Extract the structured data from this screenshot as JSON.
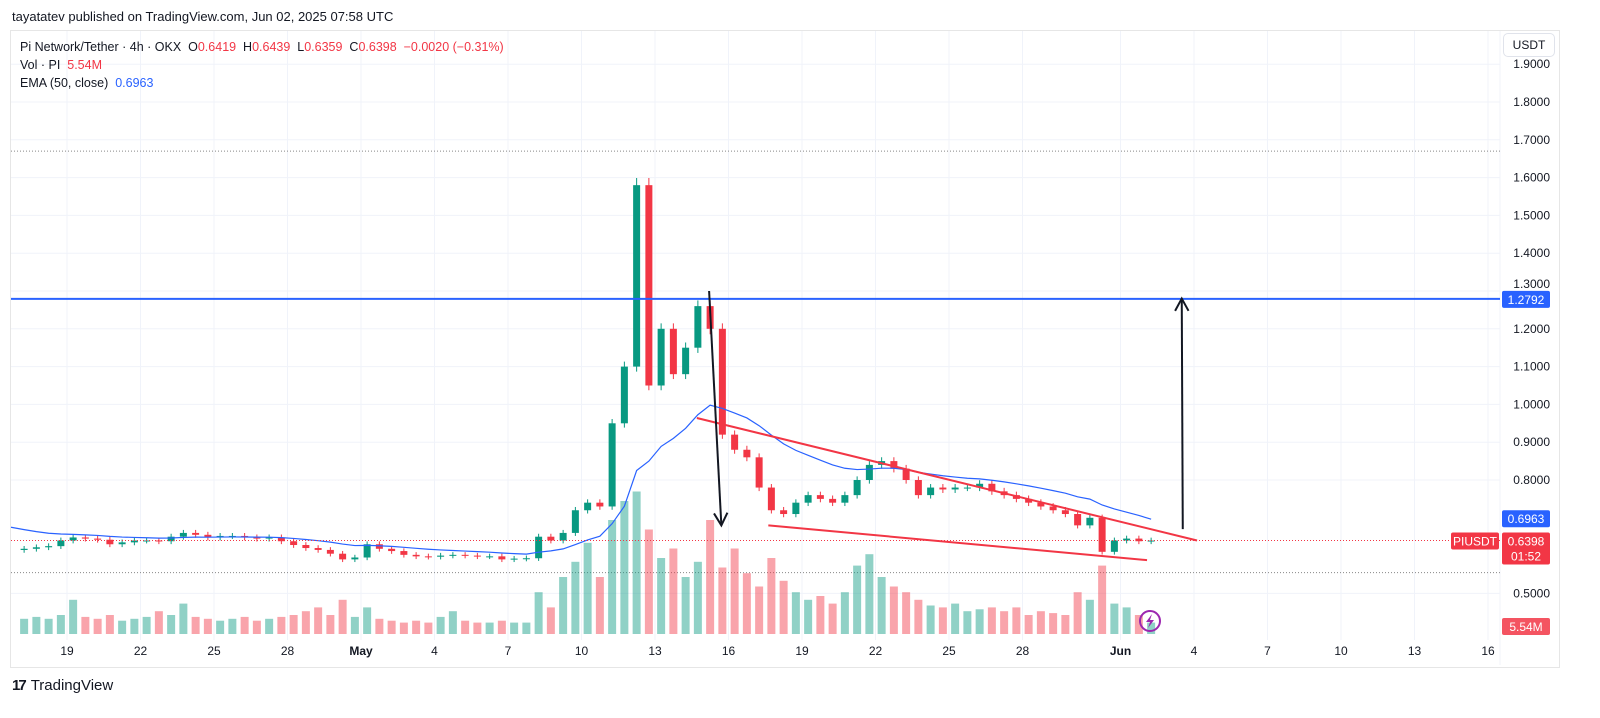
{
  "publish_line": "tayatatev published on TradingView.com, Jun 02, 2025 07:58 UTC",
  "legend": {
    "symbol": "Pi Network/Tether · 4h · OKX",
    "o_label": "O",
    "o": "0.6419",
    "h_label": "H",
    "h": "0.6439",
    "l_label": "L",
    "l": "0.6359",
    "c_label": "C",
    "c": "0.6398",
    "change": "−0.0020 (−0.31%)",
    "vol_label": "Vol · PI",
    "vol": "5.54M",
    "ema_label": "EMA (50, close)",
    "ema": "0.6963"
  },
  "currency_button": "USDT",
  "brand": "TradingView",
  "colors": {
    "up": "#089981",
    "down": "#f23645",
    "ema": "#2962ff",
    "level": "#2962ff",
    "trend": "#f23645",
    "arrow": "#131722"
  },
  "chart_data": {
    "type": "candlestick",
    "interval_shown": "4h",
    "candle_start": "2025-04-17T00:00",
    "candle_step_hours": 12,
    "closes": [
      0.618,
      0.622,
      0.625,
      0.64,
      0.648,
      0.645,
      0.642,
      0.63,
      0.635,
      0.64,
      0.64,
      0.638,
      0.65,
      0.66,
      0.655,
      0.648,
      0.652,
      0.652,
      0.648,
      0.645,
      0.648,
      0.638,
      0.628,
      0.62,
      0.615,
      0.605,
      0.59,
      0.595,
      0.63,
      0.618,
      0.612,
      0.602,
      0.598,
      0.597,
      0.6,
      0.602,
      0.6,
      0.598,
      0.598,
      0.59,
      0.592,
      0.593,
      0.65,
      0.64,
      0.66,
      0.72,
      0.74,
      0.73,
      0.95,
      1.1,
      1.58,
      1.05,
      1.2,
      1.08,
      1.15,
      1.26,
      1.2,
      0.92,
      0.88,
      0.86,
      0.78,
      0.72,
      0.71,
      0.74,
      0.76,
      0.75,
      0.74,
      0.76,
      0.8,
      0.84,
      0.85,
      0.83,
      0.8,
      0.76,
      0.78,
      0.775,
      0.78,
      0.78,
      0.79,
      0.77,
      0.76,
      0.75,
      0.74,
      0.73,
      0.72,
      0.71,
      0.68,
      0.7,
      0.61,
      0.64,
      0.645,
      0.638,
      0.6398
    ],
    "volumes_m": [
      8,
      9,
      8,
      10,
      18,
      9,
      8,
      10,
      7,
      8,
      9,
      12,
      10,
      16,
      9,
      8,
      7,
      8,
      9,
      7,
      8,
      9,
      10,
      12,
      14,
      10,
      18,
      9,
      14,
      8,
      7,
      6,
      7,
      6,
      9,
      12,
      7,
      6,
      6,
      7,
      6,
      6,
      22,
      14,
      30,
      38,
      48,
      30,
      60,
      70,
      75,
      55,
      40,
      45,
      30,
      38,
      60,
      35,
      45,
      32,
      25,
      40,
      28,
      22,
      18,
      20,
      16,
      22,
      36,
      42,
      30,
      25,
      22,
      18,
      15,
      14,
      16,
      12,
      13,
      14,
      12,
      14,
      10,
      12,
      11,
      10,
      22,
      18,
      36,
      16,
      14,
      10,
      6
    ],
    "ema_period": 50,
    "ema_last": 0.6963,
    "last_price": 0.6398,
    "last_symbol": "PIUSDT",
    "countdown": "01:52",
    "last_volume": "5.54M",
    "y_ticks": [
      "1.9000",
      "1.8000",
      "1.7000",
      "1.6000",
      "1.5000",
      "1.4000",
      "1.3000",
      "1.2000",
      "1.1000",
      "1.0000",
      "0.9000",
      "0.8000",
      "0.5000"
    ],
    "ylim": [
      0.45,
      1.9
    ],
    "x_ticks": [
      {
        "date": "2025-04-19",
        "label": "19"
      },
      {
        "date": "2025-04-22",
        "label": "22"
      },
      {
        "date": "2025-04-25",
        "label": "25"
      },
      {
        "date": "2025-04-28",
        "label": "28"
      },
      {
        "date": "2025-05-01",
        "label": "May"
      },
      {
        "date": "2025-05-04",
        "label": "4"
      },
      {
        "date": "2025-05-07",
        "label": "7"
      },
      {
        "date": "2025-05-10",
        "label": "10"
      },
      {
        "date": "2025-05-13",
        "label": "13"
      },
      {
        "date": "2025-05-16",
        "label": "16"
      },
      {
        "date": "2025-05-19",
        "label": "19"
      },
      {
        "date": "2025-05-22",
        "label": "22"
      },
      {
        "date": "2025-05-25",
        "label": "25"
      },
      {
        "date": "2025-05-28",
        "label": "28"
      },
      {
        "date": "2025-06-01",
        "label": "Jun"
      },
      {
        "date": "2025-06-04",
        "label": "4"
      },
      {
        "date": "2025-06-07",
        "label": "7"
      },
      {
        "date": "2025-06-10",
        "label": "10"
      },
      {
        "date": "2025-06-13",
        "label": "13"
      },
      {
        "date": "2025-06-16",
        "label": "16"
      }
    ],
    "horizontal_level": {
      "value": 1.2792,
      "label": "1.2792"
    },
    "dotted_levels": [
      1.67,
      0.555
    ],
    "trendlines": [
      {
        "from": [
          "2025-05-14T17:00",
          0.964
        ],
        "to": [
          "2025-06-04T03:00",
          0.64
        ]
      },
      {
        "from": [
          "2025-05-17T15:00",
          0.68
        ],
        "to": [
          "2025-06-02T02:00",
          0.588
        ]
      }
    ],
    "arrows": [
      {
        "from": [
          "2025-05-15T05:00",
          1.3
        ],
        "to": [
          "2025-05-15T17:00",
          0.68
        ]
      },
      {
        "from": [
          "2025-06-03T13:00",
          0.67
        ],
        "to": [
          "2025-06-03T12:00",
          1.28
        ]
      }
    ]
  }
}
